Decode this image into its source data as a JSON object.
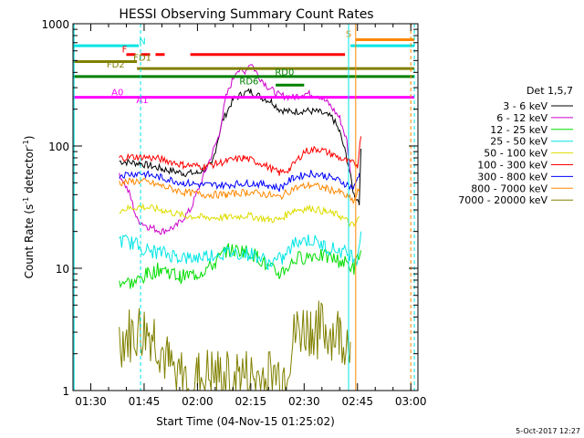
{
  "chart_data": {
    "type": "line",
    "title": "HESSI Observing Summary Count Rates",
    "xlabel": "Start Time (04-Nov-15 01:25:02)",
    "ylabel_main": "Count Rate (s",
    "ylabel_sup1": "-1",
    "ylabel_mid": " detector",
    "ylabel_sup2": "-1",
    "ylabel_end": ")",
    "y_scale": "log",
    "ylim": [
      1,
      1000
    ],
    "xlim_minutes": [
      85,
      182
    ],
    "x_ticks": [
      {
        "label": "01:30",
        "m": 90
      },
      {
        "label": "01:45",
        "m": 105
      },
      {
        "label": "02:00",
        "m": 120
      },
      {
        "label": "02:15",
        "m": 135
      },
      {
        "label": "02:30",
        "m": 150
      },
      {
        "label": "02:45",
        "m": 165
      },
      {
        "label": "03:00",
        "m": 180
      }
    ],
    "y_ticks": [
      {
        "label": "1",
        "v": 1
      },
      {
        "label": "10",
        "v": 10
      },
      {
        "label": "100",
        "v": 100
      },
      {
        "label": "1000",
        "v": 1000
      }
    ],
    "legend_title": "Det 1,5,7",
    "footer_date": "5-Oct-2017 12:27",
    "series": [
      {
        "name": "3 - 6 keV",
        "color": "#000000",
        "points": [
          [
            98,
            75
          ],
          [
            104,
            72
          ],
          [
            110,
            65
          ],
          [
            116,
            60
          ],
          [
            120,
            60
          ],
          [
            124,
            70
          ],
          [
            127,
            160
          ],
          [
            130,
            240
          ],
          [
            133,
            270
          ],
          [
            135,
            280
          ],
          [
            138,
            250
          ],
          [
            141,
            230
          ],
          [
            143,
            200
          ],
          [
            146,
            190
          ],
          [
            150,
            195
          ],
          [
            154,
            190
          ],
          [
            158,
            170
          ],
          [
            160,
            130
          ],
          [
            162,
            80
          ],
          [
            164,
            40
          ],
          [
            165.5,
            35
          ],
          [
            166,
            95
          ]
        ]
      },
      {
        "name": "6 - 12 keV",
        "color": "#cc00cc",
        "points": [
          [
            98,
            60
          ],
          [
            101,
            40
          ],
          [
            103,
            25
          ],
          [
            106,
            22
          ],
          [
            110,
            20
          ],
          [
            114,
            22
          ],
          [
            118,
            30
          ],
          [
            122,
            60
          ],
          [
            126,
            120
          ],
          [
            128,
            250
          ],
          [
            131,
            420
          ],
          [
            133,
            400
          ],
          [
            135,
            480
          ],
          [
            137,
            380
          ],
          [
            140,
            300
          ],
          [
            143,
            260
          ],
          [
            147,
            250
          ],
          [
            150,
            270
          ],
          [
            154,
            260
          ],
          [
            157,
            220
          ],
          [
            160,
            170
          ],
          [
            162,
            110
          ],
          [
            163,
            60
          ]
        ]
      },
      {
        "name": "12 - 25 keV",
        "color": "#00dd00",
        "points": [
          [
            98,
            8
          ],
          [
            102,
            7.5
          ],
          [
            106,
            9
          ],
          [
            110,
            10
          ],
          [
            115,
            8.5
          ],
          [
            120,
            9
          ],
          [
            125,
            11
          ],
          [
            128,
            14
          ],
          [
            133,
            14
          ],
          [
            137,
            12.5
          ],
          [
            140,
            10
          ],
          [
            143,
            9
          ],
          [
            148,
            12
          ],
          [
            153,
            13
          ],
          [
            158,
            12
          ],
          [
            162,
            11
          ],
          [
            164,
            10
          ],
          [
            166,
            14
          ]
        ]
      },
      {
        "name": "25 - 50 keV",
        "color": "#00e5e5",
        "points": [
          [
            98,
            17
          ],
          [
            102,
            16
          ],
          [
            106,
            14
          ],
          [
            112,
            13
          ],
          [
            118,
            12
          ],
          [
            124,
            13
          ],
          [
            130,
            13.5
          ],
          [
            136,
            13
          ],
          [
            140,
            11
          ],
          [
            144,
            12
          ],
          [
            148,
            17
          ],
          [
            152,
            17
          ],
          [
            156,
            15
          ],
          [
            160,
            14
          ],
          [
            163,
            13
          ],
          [
            165,
            12
          ],
          [
            166,
            20
          ]
        ]
      },
      {
        "name": "50 - 100 keV",
        "color": "#dddd00",
        "points": [
          [
            98,
            30
          ],
          [
            104,
            32
          ],
          [
            110,
            30
          ],
          [
            116,
            27
          ],
          [
            122,
            26
          ],
          [
            128,
            26
          ],
          [
            134,
            27
          ],
          [
            140,
            25
          ],
          [
            143,
            25
          ],
          [
            147,
            30
          ],
          [
            152,
            31
          ],
          [
            156,
            29
          ],
          [
            160,
            27
          ],
          [
            164,
            22
          ],
          [
            165.5,
            26
          ]
        ]
      },
      {
        "name": "100 - 300 keV",
        "color": "#ff0000",
        "points": [
          [
            98,
            80
          ],
          [
            104,
            82
          ],
          [
            110,
            78
          ],
          [
            116,
            70
          ],
          [
            122,
            68
          ],
          [
            128,
            75
          ],
          [
            133,
            80
          ],
          [
            138,
            72
          ],
          [
            143,
            60
          ],
          [
            146,
            65
          ],
          [
            150,
            90
          ],
          [
            154,
            95
          ],
          [
            158,
            85
          ],
          [
            162,
            75
          ],
          [
            165,
            70
          ],
          [
            166,
            120
          ]
        ]
      },
      {
        "name": "300 - 800 keV",
        "color": "#0000ff",
        "points": [
          [
            98,
            58
          ],
          [
            104,
            60
          ],
          [
            110,
            55
          ],
          [
            116,
            50
          ],
          [
            122,
            48
          ],
          [
            128,
            48
          ],
          [
            134,
            50
          ],
          [
            140,
            48
          ],
          [
            143,
            45
          ],
          [
            147,
            55
          ],
          [
            152,
            60
          ],
          [
            156,
            57
          ],
          [
            160,
            52
          ],
          [
            164,
            45
          ],
          [
            165.5,
            60
          ]
        ]
      },
      {
        "name": "800 - 7000 keV",
        "color": "#ff8800",
        "points": [
          [
            98,
            50
          ],
          [
            104,
            52
          ],
          [
            110,
            47
          ],
          [
            116,
            42
          ],
          [
            122,
            40
          ],
          [
            128,
            40
          ],
          [
            134,
            42
          ],
          [
            140,
            40
          ],
          [
            143,
            38
          ],
          [
            147,
            45
          ],
          [
            152,
            48
          ],
          [
            156,
            45
          ],
          [
            160,
            42
          ],
          [
            164,
            35
          ],
          [
            165.5,
            45
          ]
        ]
      },
      {
        "name": "7000 - 20000 keV",
        "color": "#808000",
        "points": [
          [
            98,
            2.5
          ],
          [
            104,
            3
          ],
          [
            108,
            2.8
          ],
          [
            112,
            1.5
          ],
          [
            116,
            1.2
          ],
          [
            120,
            1.2
          ],
          [
            124,
            1.3
          ],
          [
            128,
            1.2
          ],
          [
            132,
            1.3
          ],
          [
            136,
            1.2
          ],
          [
            140,
            1.3
          ],
          [
            144,
            1.3
          ],
          [
            148,
            3
          ],
          [
            152,
            3.2
          ],
          [
            156,
            3
          ],
          [
            160,
            2.8
          ],
          [
            163,
            2.5
          ]
        ]
      }
    ],
    "flag_bars": [
      {
        "label": "N",
        "color": "#00e5e5",
        "y": 660,
        "x0": 85,
        "x1": 103.5
      },
      {
        "label": "N",
        "color": "#00e5e5",
        "y": 660,
        "x0": 163,
        "x1": 181
      },
      {
        "label": "S",
        "color": "#ff8800",
        "y": 740,
        "x0": 164.5,
        "x1": 181
      },
      {
        "label": "F",
        "color": "#ff0000",
        "y": 560,
        "x0": 100,
        "x1": 112,
        "dashed": true
      },
      {
        "label": "F",
        "color": "#ff0000",
        "y": 560,
        "x0": 118,
        "x1": 161.5
      },
      {
        "label": "FD1",
        "color": "#808000",
        "y": 490,
        "x0": 85,
        "x1": 103
      },
      {
        "label": "FD2",
        "color": "#808000",
        "y": 430,
        "x0": 103,
        "x1": 181
      },
      {
        "label": "RD0",
        "color": "#008000",
        "y": 370,
        "x0": 85,
        "x1": 181
      },
      {
        "label": "RD6",
        "color": "#008000",
        "y": 315,
        "x0": 142,
        "x1": 150
      },
      {
        "label": "A0",
        "color": "#ff00ff",
        "y": 250,
        "x0": 85,
        "x1": 181
      },
      {
        "label": "A1",
        "color": "#ff00ff",
        "y": 250,
        "x0": 85,
        "x1": 85
      }
    ],
    "flag_labels": [
      {
        "text": "N",
        "color": "#00e5e5",
        "m": 104.5,
        "y": 680
      },
      {
        "text": "S",
        "color": "#ff8800",
        "m": 162.5,
        "y": 780
      },
      {
        "text": "F",
        "color": "#ff0000",
        "m": 99.5,
        "y": 580
      },
      {
        "text": "FD1",
        "color": "#808000",
        "m": 104.5,
        "y": 500
      },
      {
        "text": "FD2",
        "color": "#808000",
        "m": 97,
        "y": 440
      },
      {
        "text": "RD0",
        "color": "#008000",
        "m": 144.5,
        "y": 380
      },
      {
        "text": "RD6",
        "color": "#008000",
        "m": 134.5,
        "y": 320
      },
      {
        "text": "A0",
        "color": "#ff00ff",
        "m": 97.5,
        "y": 260
      },
      {
        "text": "A1",
        "color": "#ff00ff",
        "m": 104.5,
        "y": 225
      }
    ],
    "vlines": [
      {
        "color": "#00e5e5",
        "m": 104,
        "dashed": true
      },
      {
        "color": "#00e5e5",
        "m": 162.5,
        "dashed": false
      },
      {
        "color": "#ff8800",
        "m": 164.5,
        "dashed": false
      },
      {
        "color": "#ff8800",
        "m": 180,
        "dashed": true
      },
      {
        "color": "#00e5e5",
        "m": 181,
        "dashed": true
      },
      {
        "color": "#00e5e5",
        "m": 85.3,
        "dashed": false
      }
    ]
  }
}
